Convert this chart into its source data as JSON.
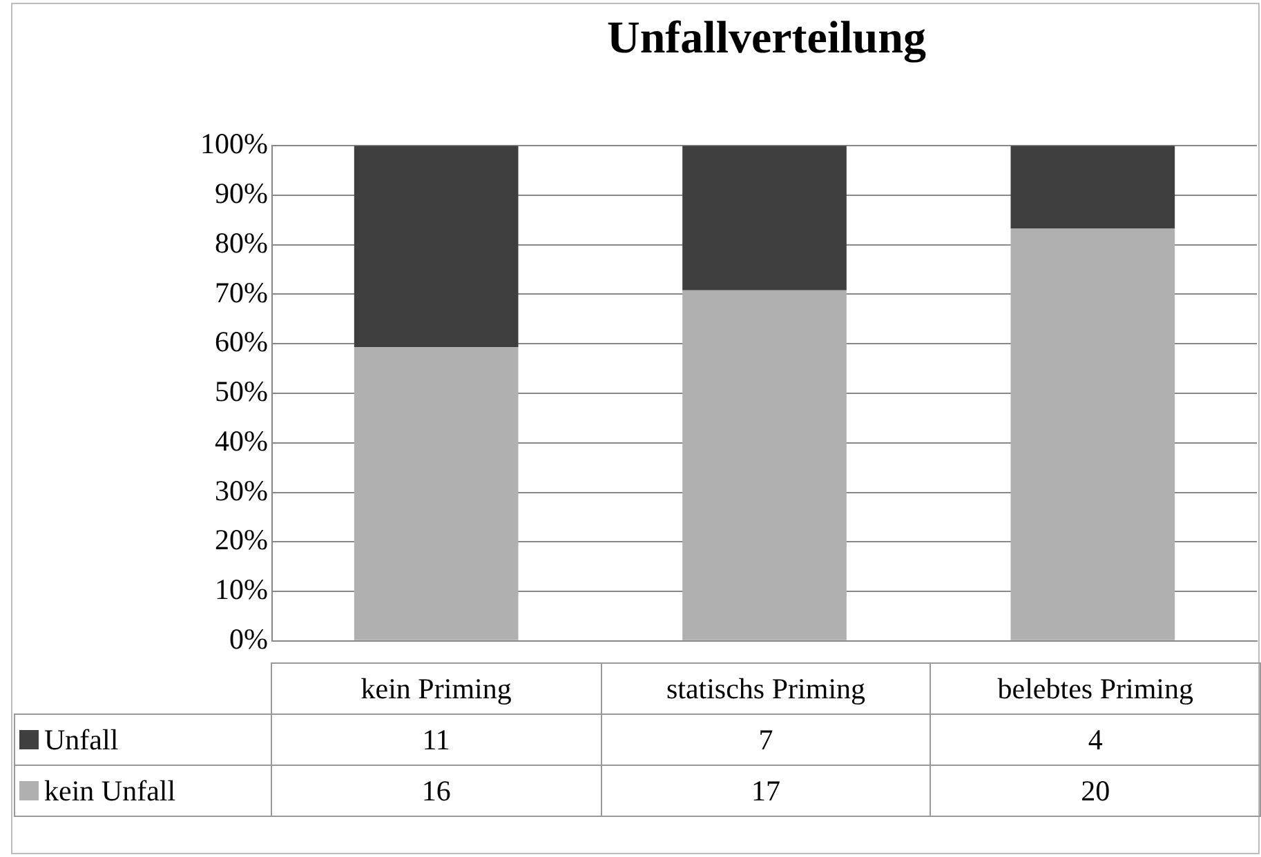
{
  "chart_data": {
    "type": "bar",
    "title": "Unfallverteilung",
    "stacked": true,
    "categories": [
      "kein Priming",
      "statischs Priming",
      "belebtes Priming"
    ],
    "series": [
      {
        "name": "kein Unfall",
        "color": "#b0b0b0",
        "values": [
          59.3,
          70.8,
          83.3
        ]
      },
      {
        "name": "Unfall",
        "color": "#3f3f3f",
        "values": [
          40.7,
          29.2,
          16.7
        ]
      }
    ],
    "annotations": [
      "11",
      "7",
      "4",
      "16",
      "17",
      "20"
    ],
    "ylim": [
      0,
      100
    ],
    "yticks": [
      {
        "value": 0,
        "label": "0%"
      },
      {
        "value": 10,
        "label": "10%"
      },
      {
        "value": 20,
        "label": "20%"
      },
      {
        "value": 30,
        "label": "30%"
      },
      {
        "value": 40,
        "label": "40%"
      },
      {
        "value": 50,
        "label": "50%"
      },
      {
        "value": 60,
        "label": "60%"
      },
      {
        "value": 70,
        "label": "70%"
      },
      {
        "value": 80,
        "label": "80%"
      },
      {
        "value": 90,
        "label": "90%"
      },
      {
        "value": 100,
        "label": "100%"
      }
    ],
    "grid": "y",
    "legend": "bottom"
  }
}
